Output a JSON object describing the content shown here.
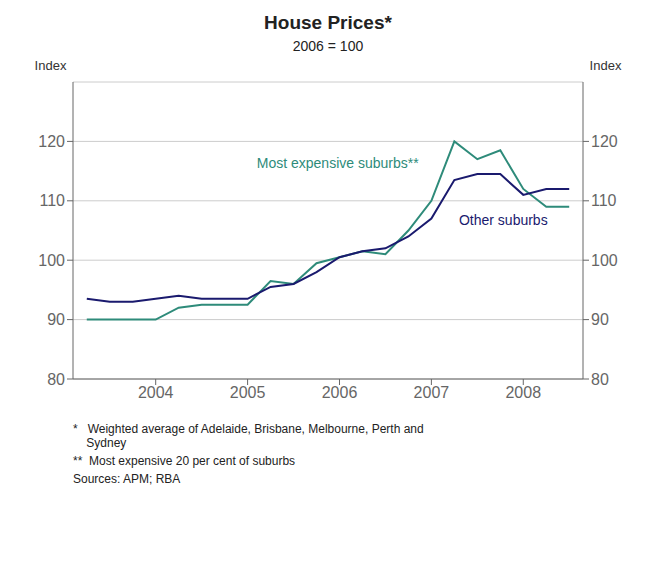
{
  "chart_data": {
    "type": "line",
    "title": "House Prices*",
    "subtitle": "2006 = 100",
    "ylabel": "Index",
    "y2label": "Index",
    "x": [
      2003.25,
      2003.5,
      2003.75,
      2004.0,
      2004.25,
      2004.5,
      2004.75,
      2005.0,
      2005.25,
      2005.5,
      2005.75,
      2006.0,
      2006.25,
      2006.5,
      2006.75,
      2007.0,
      2007.25,
      2007.5,
      2007.75,
      2008.0,
      2008.25,
      2008.5
    ],
    "series": [
      {
        "name": "Most expensive suburbs**",
        "color": "#2e8b7a",
        "values": [
          90.0,
          90.0,
          90.0,
          90.0,
          92.0,
          92.5,
          92.5,
          92.5,
          96.5,
          96.0,
          99.5,
          100.5,
          101.5,
          101.0,
          105.0,
          110.0,
          120.0,
          117.0,
          118.5,
          112.0,
          109.0,
          109.0
        ]
      },
      {
        "name": "Other suburbs",
        "color": "#1a1a6e",
        "values": [
          93.5,
          93.0,
          93.0,
          93.5,
          94.0,
          93.5,
          93.5,
          93.5,
          95.5,
          96.0,
          98.0,
          100.5,
          101.5,
          102.0,
          104.0,
          107.0,
          113.5,
          114.5,
          114.5,
          111.0,
          112.0,
          112.0
        ]
      }
    ],
    "annotations": [
      {
        "text": "Most expensive suburbs**",
        "x": 2005.1,
        "y": 115.0,
        "color": "#2e8b7a"
      },
      {
        "text": "Other suburbs",
        "x": 2007.3,
        "y": 105.5,
        "color": "#1a1a6e"
      }
    ],
    "xlim": [
      2003.1,
      2008.65
    ],
    "xticks": [
      2004.0,
      2005.0,
      2006.0,
      2007.0,
      2008.0
    ],
    "ylim": [
      80,
      130
    ],
    "yticks": [
      80,
      90,
      100,
      110,
      120
    ],
    "y2lim": [
      80,
      130
    ],
    "y2ticks": [
      80,
      90,
      100,
      110,
      120
    ],
    "grid": true,
    "footnotes": [
      "*   Weighted average of Adelaide, Brisbane, Melbourne, Perth and\n    Sydney",
      "**  Most expensive 20 per cent of suburbs",
      "Sources: APM; RBA"
    ]
  }
}
